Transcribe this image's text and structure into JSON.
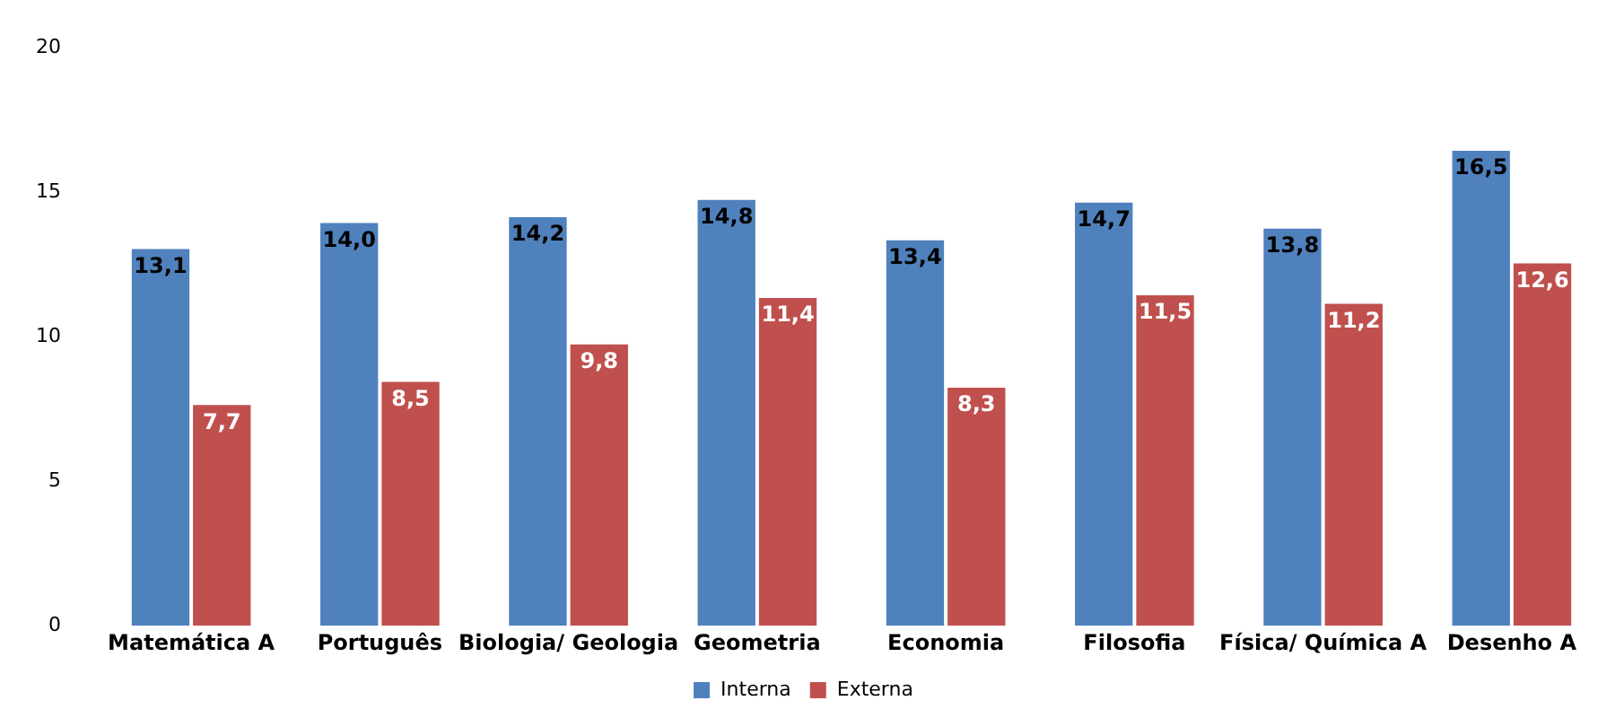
{
  "chart_data": {
    "type": "bar",
    "categories": [
      "Matemática A",
      "Português",
      "Biologia/ Geologia",
      "Geometria",
      "Economia",
      "Filosofia",
      "Física/ Química A",
      "Desenho A"
    ],
    "series": [
      {
        "name": "Interna",
        "color": "#4f81bd",
        "values": [
          13.1,
          14.0,
          14.2,
          14.8,
          13.4,
          14.7,
          13.8,
          16.5
        ],
        "value_labels": [
          "13,1",
          "14,0",
          "14,2",
          "14,8",
          "13,4",
          "14,7",
          "13,8",
          "16,5"
        ]
      },
      {
        "name": "Externa",
        "color": "#c0504d",
        "values": [
          7.7,
          8.5,
          9.8,
          11.4,
          8.3,
          11.5,
          11.2,
          12.6
        ],
        "value_labels": [
          "7,7",
          "8,5",
          "9,8",
          "11,4",
          "8,3",
          "11,5",
          "11,2",
          "12,6"
        ]
      }
    ],
    "ylim": [
      0,
      20
    ],
    "yticks": [
      0,
      5,
      10,
      15,
      20
    ],
    "grid": false,
    "legend": "bottom"
  }
}
